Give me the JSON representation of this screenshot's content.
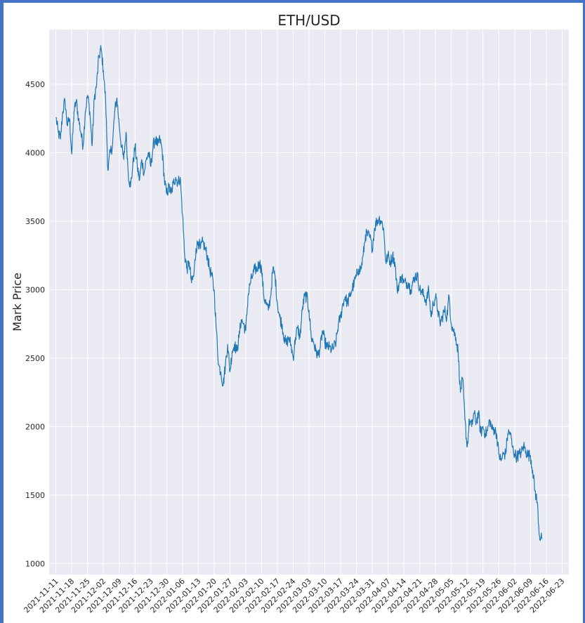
{
  "chart_data": {
    "type": "line",
    "title": "ETH/USD",
    "xlabel": "",
    "ylabel": "Mark Price",
    "grid": true,
    "ylim": [
      920,
      4900
    ],
    "xlim": [
      "2021-11-08",
      "2022-06-26"
    ],
    "yticks": [
      "1000",
      "1500",
      "2000",
      "2500",
      "3000",
      "3500",
      "4000",
      "4500"
    ],
    "xticks": [
      "2021-11-11",
      "2021-11-18",
      "2021-11-25",
      "2021-12-02",
      "2021-12-09",
      "2021-12-16",
      "2021-12-23",
      "2021-12-30",
      "2022-01-06",
      "2022-01-13",
      "2022-01-20",
      "2022-01-27",
      "2022-02-03",
      "2022-02-10",
      "2022-02-17",
      "2022-02-24",
      "2022-03-03",
      "2022-03-10",
      "2022-03-17",
      "2022-03-24",
      "2022-03-31",
      "2022-04-07",
      "2022-04-14",
      "2022-04-21",
      "2022-04-28",
      "2022-05-05",
      "2022-05-12",
      "2022-05-19",
      "2022-05-26",
      "2022-06-02",
      "2022-06-09",
      "2022-06-16",
      "2022-06-23"
    ],
    "series": [
      {
        "color": "#1f77b4",
        "points": [
          [
            "2021-11-11",
            4260
          ],
          [
            "2021-11-12",
            4150
          ],
          [
            "2021-11-13",
            4100
          ],
          [
            "2021-11-14",
            4300
          ],
          [
            "2021-11-15",
            4380
          ],
          [
            "2021-11-16",
            4200
          ],
          [
            "2021-11-17",
            4250
          ],
          [
            "2021-11-18",
            3990
          ],
          [
            "2021-11-19",
            4300
          ],
          [
            "2021-11-20",
            4380
          ],
          [
            "2021-11-21",
            4250
          ],
          [
            "2021-11-22",
            4150
          ],
          [
            "2021-11-23",
            4050
          ],
          [
            "2021-11-24",
            4300
          ],
          [
            "2021-11-25",
            4420
          ],
          [
            "2021-11-26",
            4300
          ],
          [
            "2021-11-27",
            4050
          ],
          [
            "2021-11-28",
            4400
          ],
          [
            "2021-11-29",
            4500
          ],
          [
            "2021-11-30",
            4700
          ],
          [
            "2021-12-01",
            4760
          ],
          [
            "2021-12-02",
            4600
          ],
          [
            "2021-12-03",
            4380
          ],
          [
            "2021-12-04",
            3870
          ],
          [
            "2021-12-05",
            4000
          ],
          [
            "2021-12-06",
            4050
          ],
          [
            "2021-12-07",
            4300
          ],
          [
            "2021-12-08",
            4400
          ],
          [
            "2021-12-09",
            4200
          ],
          [
            "2021-12-10",
            4050
          ],
          [
            "2021-12-11",
            3950
          ],
          [
            "2021-12-12",
            4150
          ],
          [
            "2021-12-13",
            3850
          ],
          [
            "2021-12-14",
            3750
          ],
          [
            "2021-12-15",
            3900
          ],
          [
            "2021-12-16",
            4050
          ],
          [
            "2021-12-17",
            3900
          ],
          [
            "2021-12-18",
            3800
          ],
          [
            "2021-12-19",
            3950
          ],
          [
            "2021-12-20",
            3850
          ],
          [
            "2021-12-21",
            3950
          ],
          [
            "2021-12-22",
            4000
          ],
          [
            "2021-12-23",
            3900
          ],
          [
            "2021-12-24",
            4050
          ],
          [
            "2021-12-25",
            4100
          ],
          [
            "2021-12-26",
            4050
          ],
          [
            "2021-12-27",
            4100
          ],
          [
            "2021-12-28",
            4020
          ],
          [
            "2021-12-29",
            3800
          ],
          [
            "2021-12-30",
            3700
          ],
          [
            "2021-12-31",
            3750
          ],
          [
            "2022-01-01",
            3700
          ],
          [
            "2022-01-02",
            3780
          ],
          [
            "2022-01-03",
            3820
          ],
          [
            "2022-01-04",
            3780
          ],
          [
            "2022-01-05",
            3820
          ],
          [
            "2022-01-06",
            3550
          ],
          [
            "2022-01-07",
            3250
          ],
          [
            "2022-01-08",
            3150
          ],
          [
            "2022-01-09",
            3200
          ],
          [
            "2022-01-10",
            3050
          ],
          [
            "2022-01-11",
            3100
          ],
          [
            "2022-01-12",
            3300
          ],
          [
            "2022-01-13",
            3350
          ],
          [
            "2022-01-14",
            3300
          ],
          [
            "2022-01-15",
            3350
          ],
          [
            "2022-01-16",
            3300
          ],
          [
            "2022-01-17",
            3250
          ],
          [
            "2022-01-18",
            3150
          ],
          [
            "2022-01-19",
            3100
          ],
          [
            "2022-01-20",
            3000
          ],
          [
            "2022-01-21",
            2700
          ],
          [
            "2022-01-22",
            2450
          ],
          [
            "2022-01-23",
            2400
          ],
          [
            "2022-01-24",
            2300
          ],
          [
            "2022-01-25",
            2450
          ],
          [
            "2022-01-26",
            2600
          ],
          [
            "2022-01-27",
            2400
          ],
          [
            "2022-01-28",
            2550
          ],
          [
            "2022-01-29",
            2600
          ],
          [
            "2022-01-30",
            2550
          ],
          [
            "2022-01-31",
            2650
          ],
          [
            "2022-02-01",
            2780
          ],
          [
            "2022-02-02",
            2750
          ],
          [
            "2022-02-03",
            2700
          ],
          [
            "2022-02-04",
            2950
          ],
          [
            "2022-02-05",
            3050
          ],
          [
            "2022-02-06",
            3100
          ],
          [
            "2022-02-07",
            3150
          ],
          [
            "2022-02-08",
            3150
          ],
          [
            "2022-02-09",
            3200
          ],
          [
            "2022-02-10",
            3150
          ],
          [
            "2022-02-11",
            2950
          ],
          [
            "2022-02-12",
            2900
          ],
          [
            "2022-02-13",
            2850
          ],
          [
            "2022-02-14",
            2950
          ],
          [
            "2022-02-15",
            3150
          ],
          [
            "2022-02-16",
            3100
          ],
          [
            "2022-02-17",
            2900
          ],
          [
            "2022-02-18",
            2800
          ],
          [
            "2022-02-19",
            2750
          ],
          [
            "2022-02-20",
            2650
          ],
          [
            "2022-02-21",
            2600
          ],
          [
            "2022-02-22",
            2650
          ],
          [
            "2022-02-23",
            2600
          ],
          [
            "2022-02-24",
            2500
          ],
          [
            "2022-02-25",
            2650
          ],
          [
            "2022-02-26",
            2720
          ],
          [
            "2022-02-27",
            2650
          ],
          [
            "2022-02-28",
            2850
          ],
          [
            "2022-03-01",
            2950
          ],
          [
            "2022-03-02",
            2950
          ],
          [
            "2022-03-03",
            2850
          ],
          [
            "2022-03-04",
            2650
          ],
          [
            "2022-03-05",
            2620
          ],
          [
            "2022-03-06",
            2550
          ],
          [
            "2022-03-07",
            2520
          ],
          [
            "2022-03-08",
            2580
          ],
          [
            "2022-03-09",
            2700
          ],
          [
            "2022-03-10",
            2620
          ],
          [
            "2022-03-11",
            2580
          ],
          [
            "2022-03-12",
            2580
          ],
          [
            "2022-03-13",
            2560
          ],
          [
            "2022-03-14",
            2580
          ],
          [
            "2022-03-15",
            2620
          ],
          [
            "2022-03-16",
            2750
          ],
          [
            "2022-03-17",
            2800
          ],
          [
            "2022-03-18",
            2900
          ],
          [
            "2022-03-19",
            2950
          ],
          [
            "2022-03-20",
            2900
          ],
          [
            "2022-03-21",
            2950
          ],
          [
            "2022-03-22",
            3000
          ],
          [
            "2022-03-23",
            3050
          ],
          [
            "2022-03-24",
            3100
          ],
          [
            "2022-03-25",
            3150
          ],
          [
            "2022-03-26",
            3150
          ],
          [
            "2022-03-27",
            3250
          ],
          [
            "2022-03-28",
            3400
          ],
          [
            "2022-03-29",
            3400
          ],
          [
            "2022-03-30",
            3380
          ],
          [
            "2022-03-31",
            3300
          ],
          [
            "2022-04-01",
            3450
          ],
          [
            "2022-04-02",
            3500
          ],
          [
            "2022-04-03",
            3520
          ],
          [
            "2022-04-04",
            3500
          ],
          [
            "2022-04-05",
            3450
          ],
          [
            "2022-04-06",
            3200
          ],
          [
            "2022-04-07",
            3250
          ],
          [
            "2022-04-08",
            3200
          ],
          [
            "2022-04-09",
            3250
          ],
          [
            "2022-04-10",
            3200
          ],
          [
            "2022-04-11",
            3000
          ],
          [
            "2022-04-12",
            3050
          ],
          [
            "2022-04-13",
            3100
          ],
          [
            "2022-04-14",
            3050
          ],
          [
            "2022-04-15",
            3050
          ],
          [
            "2022-04-16",
            3050
          ],
          [
            "2022-04-17",
            3000
          ],
          [
            "2022-04-18",
            3050
          ],
          [
            "2022-04-19",
            3100
          ],
          [
            "2022-04-20",
            3100
          ],
          [
            "2022-04-21",
            3000
          ],
          [
            "2022-04-22",
            2980
          ],
          [
            "2022-04-23",
            2950
          ],
          [
            "2022-04-24",
            2920
          ],
          [
            "2022-04-25",
            3000
          ],
          [
            "2022-04-26",
            2800
          ],
          [
            "2022-04-27",
            2900
          ],
          [
            "2022-04-28",
            2950
          ],
          [
            "2022-04-29",
            2850
          ],
          [
            "2022-04-30",
            2750
          ],
          [
            "2022-05-01",
            2800
          ],
          [
            "2022-05-02",
            2850
          ],
          [
            "2022-05-03",
            2800
          ],
          [
            "2022-05-04",
            2950
          ],
          [
            "2022-05-05",
            2750
          ],
          [
            "2022-05-06",
            2700
          ],
          [
            "2022-05-07",
            2650
          ],
          [
            "2022-05-08",
            2550
          ],
          [
            "2022-05-09",
            2250
          ],
          [
            "2022-05-10",
            2350
          ],
          [
            "2022-05-11",
            2050
          ],
          [
            "2022-05-12",
            1850
          ],
          [
            "2022-05-13",
            2050
          ],
          [
            "2022-05-14",
            2000
          ],
          [
            "2022-05-15",
            2100
          ],
          [
            "2022-05-16",
            2030
          ],
          [
            "2022-05-17",
            2100
          ],
          [
            "2022-05-18",
            1950
          ],
          [
            "2022-05-19",
            2000
          ],
          [
            "2022-05-20",
            1950
          ],
          [
            "2022-05-21",
            1970
          ],
          [
            "2022-05-22",
            2050
          ],
          [
            "2022-05-23",
            1980
          ],
          [
            "2022-05-24",
            1980
          ],
          [
            "2022-05-25",
            1950
          ],
          [
            "2022-05-26",
            1800
          ],
          [
            "2022-05-27",
            1750
          ],
          [
            "2022-05-28",
            1800
          ],
          [
            "2022-05-29",
            1800
          ],
          [
            "2022-05-30",
            1950
          ],
          [
            "2022-05-31",
            1960
          ],
          [
            "2022-06-01",
            1850
          ],
          [
            "2022-06-02",
            1800
          ],
          [
            "2022-06-03",
            1780
          ],
          [
            "2022-06-04",
            1800
          ],
          [
            "2022-06-05",
            1810
          ],
          [
            "2022-06-06",
            1860
          ],
          [
            "2022-06-07",
            1820
          ],
          [
            "2022-06-08",
            1790
          ],
          [
            "2022-06-09",
            1790
          ],
          [
            "2022-06-10",
            1680
          ],
          [
            "2022-06-11",
            1530
          ],
          [
            "2022-06-12",
            1450
          ],
          [
            "2022-06-13",
            1200
          ],
          [
            "2022-06-14",
            1180
          ]
        ]
      }
    ]
  }
}
